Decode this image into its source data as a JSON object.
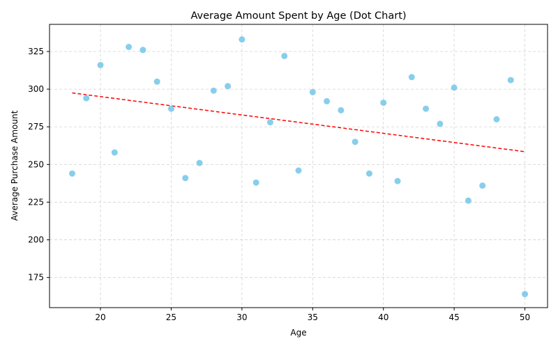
{
  "chart_data": {
    "type": "scatter",
    "title": "Average Amount Spent by Age (Dot Chart)",
    "xlabel": "Age",
    "ylabel": "Average Purchase Amount",
    "xlim": [
      16.4,
      51.6
    ],
    "ylim": [
      155,
      343
    ],
    "xticks": [
      20,
      25,
      30,
      35,
      40,
      45,
      50
    ],
    "yticks": [
      175,
      200,
      225,
      250,
      275,
      300,
      325
    ],
    "grid": true,
    "point_color": "#87ceeb",
    "trend_color": "#ff0000",
    "points": [
      {
        "x": 18,
        "y": 244
      },
      {
        "x": 19,
        "y": 294
      },
      {
        "x": 20,
        "y": 316
      },
      {
        "x": 21,
        "y": 258
      },
      {
        "x": 22,
        "y": 328
      },
      {
        "x": 23,
        "y": 326
      },
      {
        "x": 24,
        "y": 305
      },
      {
        "x": 25,
        "y": 287
      },
      {
        "x": 26,
        "y": 241
      },
      {
        "x": 27,
        "y": 251
      },
      {
        "x": 28,
        "y": 299
      },
      {
        "x": 29,
        "y": 302
      },
      {
        "x": 30,
        "y": 333
      },
      {
        "x": 31,
        "y": 238
      },
      {
        "x": 32,
        "y": 278
      },
      {
        "x": 33,
        "y": 322
      },
      {
        "x": 34,
        "y": 246
      },
      {
        "x": 35,
        "y": 298
      },
      {
        "x": 36,
        "y": 292
      },
      {
        "x": 37,
        "y": 286
      },
      {
        "x": 38,
        "y": 265
      },
      {
        "x": 39,
        "y": 244
      },
      {
        "x": 40,
        "y": 291
      },
      {
        "x": 41,
        "y": 239
      },
      {
        "x": 42,
        "y": 308
      },
      {
        "x": 43,
        "y": 287
      },
      {
        "x": 44,
        "y": 277
      },
      {
        "x": 45,
        "y": 301
      },
      {
        "x": 46,
        "y": 226
      },
      {
        "x": 47,
        "y": 236
      },
      {
        "x": 48,
        "y": 280
      },
      {
        "x": 49,
        "y": 306
      },
      {
        "x": 50,
        "y": 164
      }
    ],
    "trend": {
      "x": [
        18,
        50
      ],
      "y": [
        297.5,
        258.5
      ]
    }
  }
}
